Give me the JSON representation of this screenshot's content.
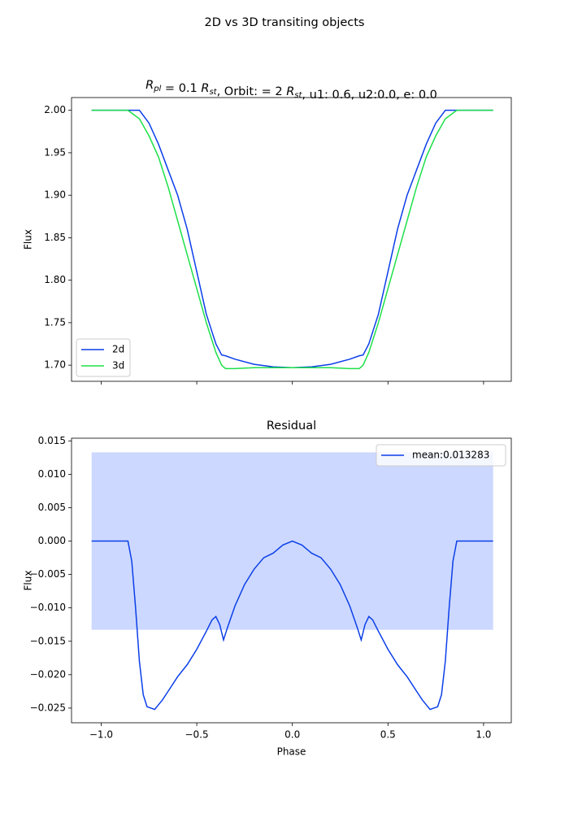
{
  "title": "2D vs 3D transiting objects",
  "chart_data": [
    {
      "type": "line",
      "title": [
        {
          "text": "R",
          "sub": "pl"
        },
        " = 0.1 ",
        {
          "text": "R",
          "sub": "st"
        },
        ", Orbit: = 2 ",
        {
          "text": "R",
          "sub": "st"
        },
        ", u1: 0.6, u2:0.0, e: 0.0"
      ],
      "ylabel": "Flux",
      "x": [
        -1.05,
        -0.9,
        -0.86,
        -0.8,
        -0.75,
        -0.7,
        -0.65,
        -0.6,
        -0.55,
        -0.5,
        -0.45,
        -0.4,
        -0.37,
        -0.35,
        -0.3,
        -0.2,
        -0.1,
        0,
        0.1,
        0.2,
        0.3,
        0.35,
        0.37,
        0.4,
        0.45,
        0.5,
        0.55,
        0.6,
        0.65,
        0.7,
        0.75,
        0.8,
        0.86,
        0.9,
        1.05
      ],
      "series": [
        {
          "name": "2d",
          "color": "#0b3fe8",
          "values": [
            2,
            2,
            2,
            2,
            1.985,
            1.96,
            1.93,
            1.9,
            1.86,
            1.81,
            1.76,
            1.725,
            1.712,
            1.711,
            1.707,
            1.701,
            1.698,
            1.697,
            1.698,
            1.701,
            1.707,
            1.711,
            1.712,
            1.725,
            1.76,
            1.81,
            1.86,
            1.9,
            1.93,
            1.96,
            1.985,
            2,
            2,
            2,
            2
          ]
        },
        {
          "name": "3d",
          "color": "#1ee04a",
          "values": [
            2,
            2,
            2,
            1.99,
            1.97,
            1.945,
            1.91,
            1.87,
            1.83,
            1.79,
            1.75,
            1.715,
            1.7,
            1.696,
            1.696,
            1.697,
            1.697,
            1.697,
            1.697,
            1.697,
            1.696,
            1.696,
            1.7,
            1.715,
            1.75,
            1.79,
            1.83,
            1.87,
            1.91,
            1.945,
            1.97,
            1.99,
            2,
            2,
            2
          ]
        }
      ],
      "xlim": [
        -1.155,
        1.145
      ],
      "xticks": [
        -1,
        -0.5,
        0,
        0.5,
        1
      ],
      "show_xtick_labels": false,
      "ylim": [
        1.681,
        2.015
      ],
      "yticks": [
        {
          "value": 1.7,
          "label": "1.70"
        },
        1.75,
        {
          "value": 1.8,
          "label": "1.80"
        },
        1.85,
        {
          "value": 1.9,
          "label": "1.90"
        },
        1.95,
        {
          "value": 2,
          "label": "2.00"
        }
      ],
      "legend": "lower left"
    },
    {
      "type": "line",
      "title": "Residual",
      "xlabel": "Phase",
      "ylabel": "Flux",
      "band": {
        "value": 0.013283,
        "xlim": [
          -1.05,
          1.05
        ],
        "color": "#ccd8ff"
      },
      "x": [
        -1.05,
        -0.86,
        -0.84,
        -0.82,
        -0.8,
        -0.78,
        -0.76,
        -0.74,
        -0.72,
        -0.7,
        -0.68,
        -0.65,
        -0.6,
        -0.55,
        -0.5,
        -0.45,
        -0.42,
        -0.4,
        -0.38,
        -0.36,
        -0.34,
        -0.3,
        -0.25,
        -0.2,
        -0.15,
        -0.1,
        -0.05,
        0,
        0.05,
        0.1,
        0.15,
        0.2,
        0.25,
        0.3,
        0.34,
        0.36,
        0.38,
        0.4,
        0.42,
        0.45,
        0.5,
        0.55,
        0.6,
        0.65,
        0.68,
        0.7,
        0.72,
        0.74,
        0.76,
        0.78,
        0.8,
        0.82,
        0.84,
        0.86,
        1.05
      ],
      "series": [
        {
          "name": "mean:0.013283",
          "color": "#0b3fe8",
          "values": [
            0,
            0,
            -0.003,
            -0.01,
            -0.018,
            -0.023,
            -0.0248,
            -0.025,
            -0.0252,
            -0.0245,
            -0.0238,
            -0.0225,
            -0.0203,
            -0.0185,
            -0.0162,
            -0.0135,
            -0.0118,
            -0.0113,
            -0.0125,
            -0.0148,
            -0.013,
            -0.0097,
            -0.0065,
            -0.0042,
            -0.0025,
            -0.0018,
            -0.0006,
            0,
            -0.0006,
            -0.0018,
            -0.0025,
            -0.0042,
            -0.0065,
            -0.0097,
            -0.013,
            -0.0148,
            -0.0125,
            -0.0113,
            -0.0118,
            -0.0135,
            -0.0162,
            -0.0185,
            -0.0203,
            -0.0225,
            -0.0238,
            -0.0245,
            -0.0252,
            -0.025,
            -0.0248,
            -0.023,
            -0.018,
            -0.01,
            -0.003,
            0,
            0
          ]
        }
      ],
      "xlim": [
        -1.155,
        1.145
      ],
      "xticks": [
        {
          "value": -1,
          "label": "−1.0"
        },
        {
          "value": -0.5,
          "label": "−0.5"
        },
        {
          "value": 0,
          "label": "0.0"
        },
        0.5,
        {
          "value": 1,
          "label": "1.0"
        }
      ],
      "ylim": [
        -0.0272,
        0.0154
      ],
      "yticks": [
        {
          "value": -0.025,
          "label": "−0.025"
        },
        {
          "value": -0.02,
          "label": "−0.020"
        },
        {
          "value": -0.015,
          "label": "−0.015"
        },
        {
          "value": -0.01,
          "label": "−0.010"
        },
        {
          "value": -0.005,
          "label": "−0.005"
        },
        {
          "value": 0,
          "label": "0.000"
        },
        0.005,
        {
          "value": 0.01,
          "label": "0.010"
        },
        0.015
      ],
      "legend": "upper right"
    }
  ]
}
